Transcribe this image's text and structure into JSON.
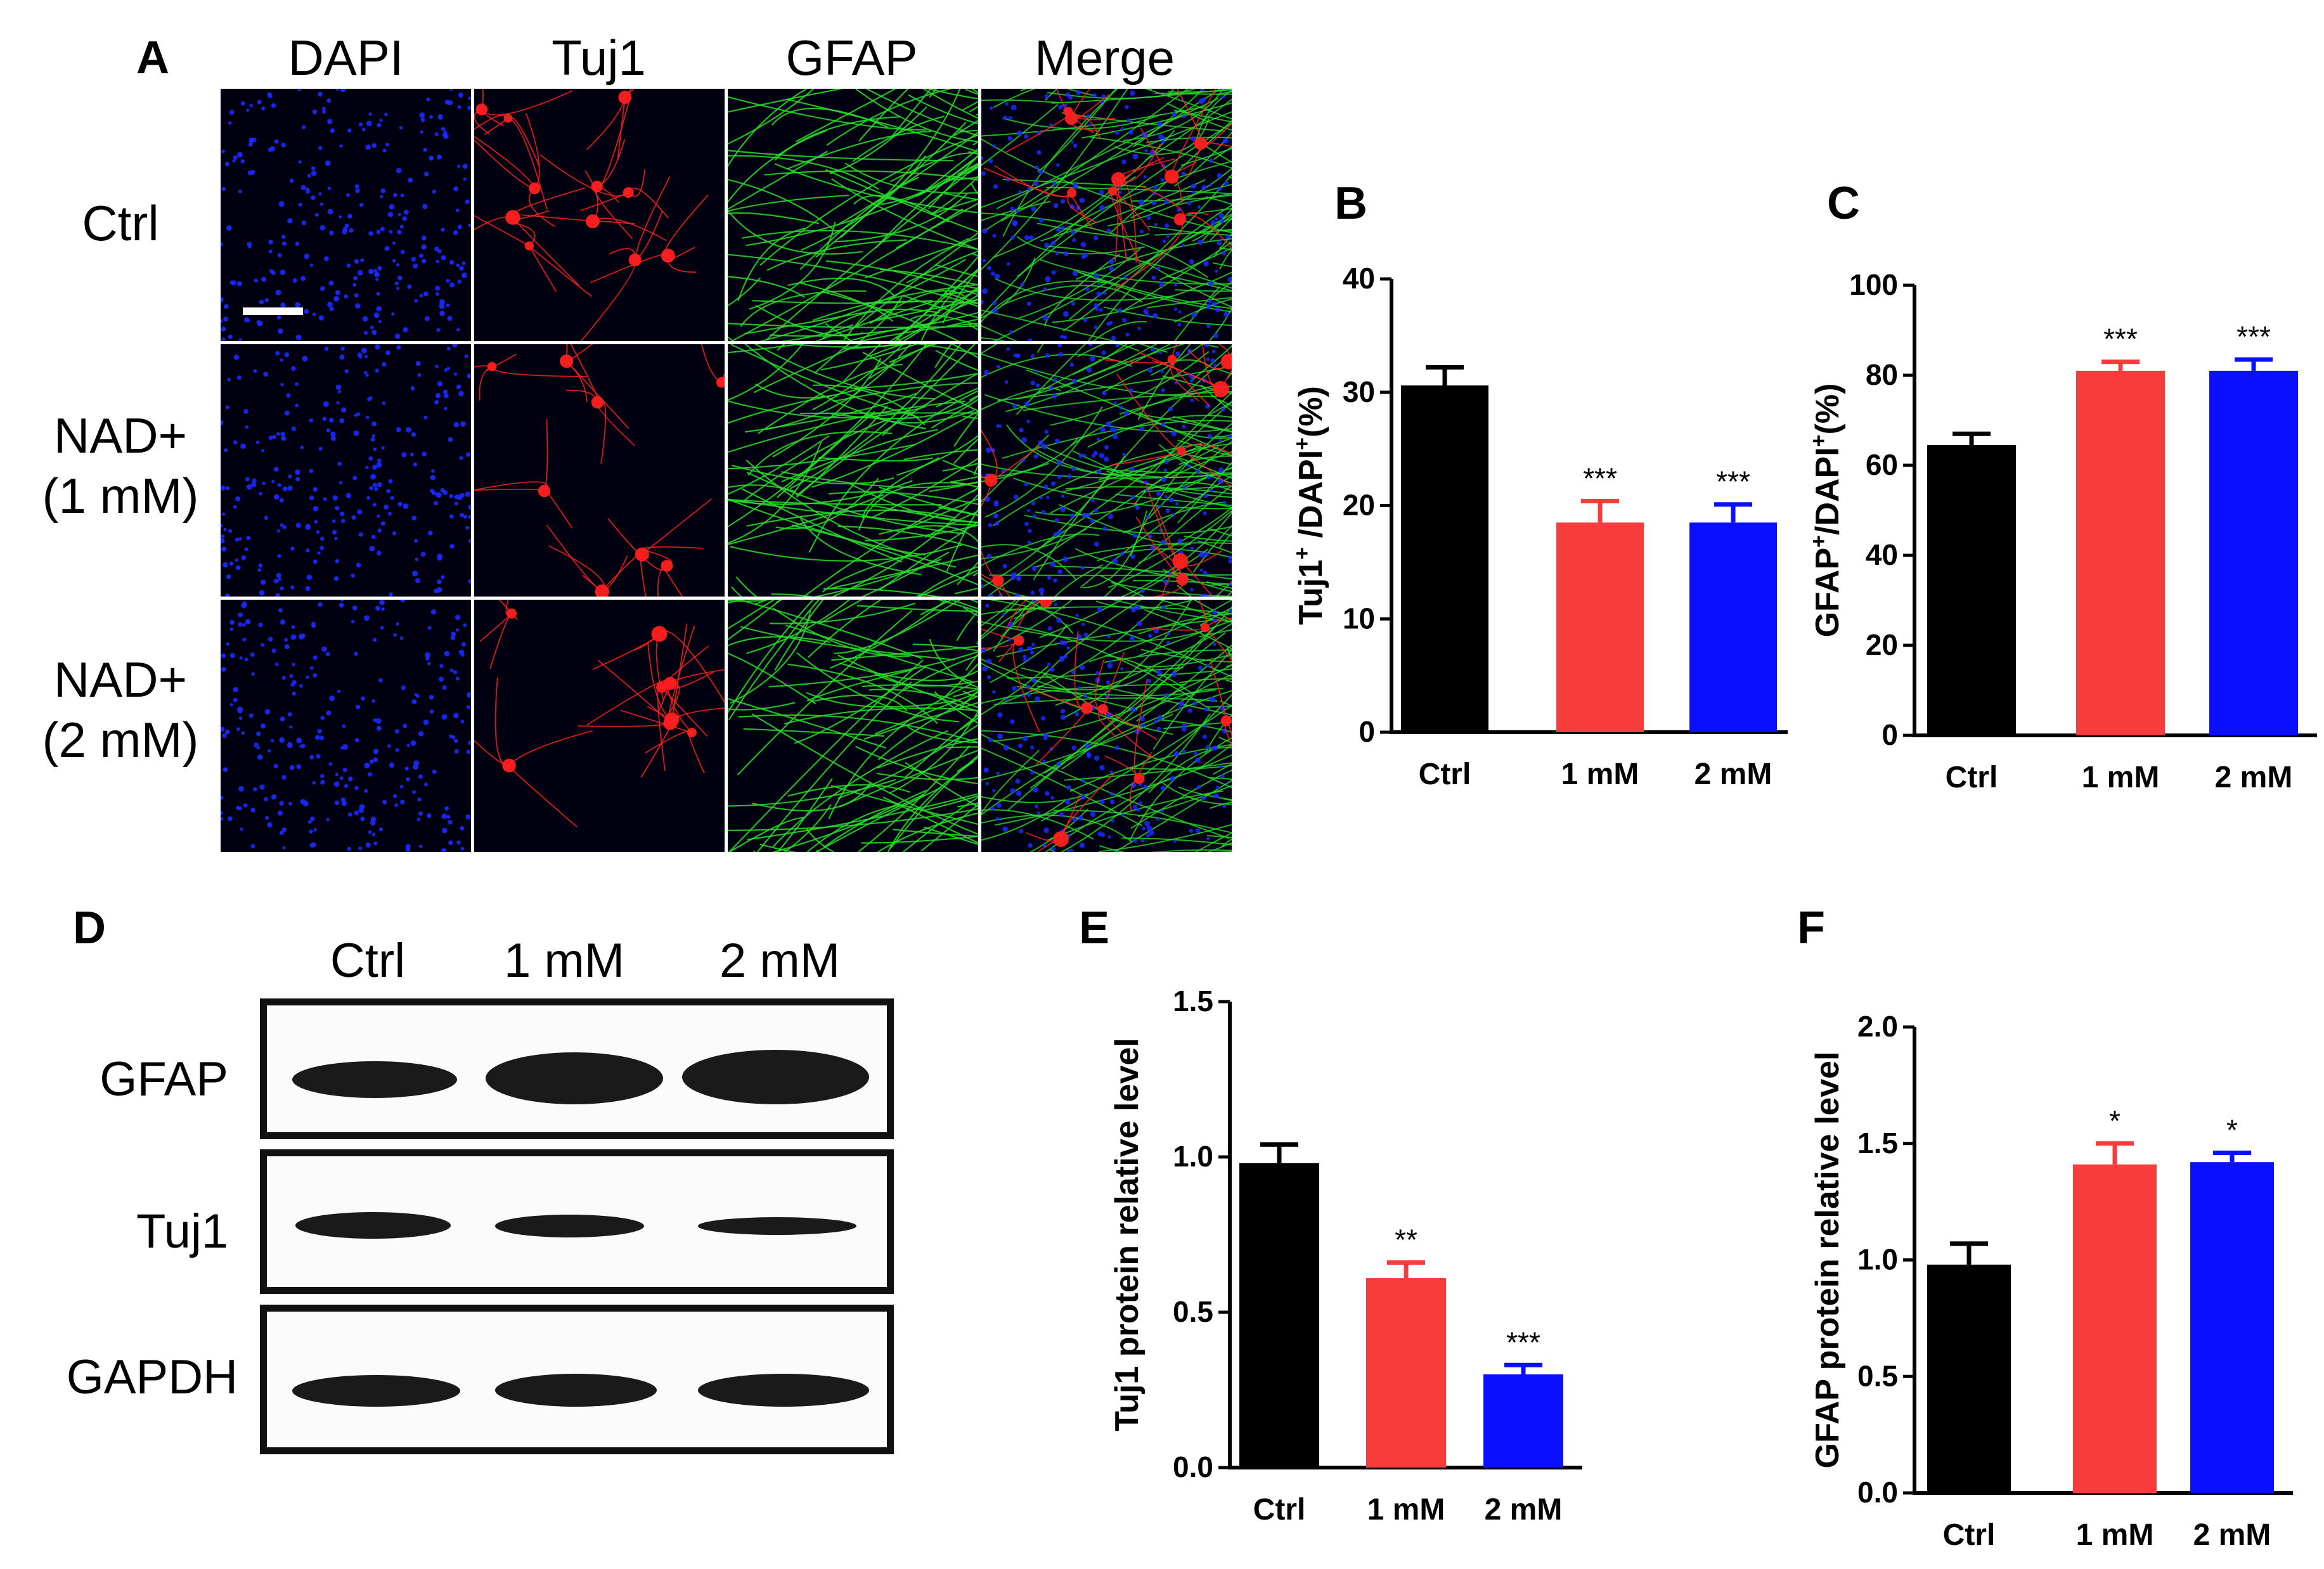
{
  "panel_letters": {
    "a": "A",
    "b": "B",
    "c": "C",
    "d": "D",
    "e": "E",
    "f": "F"
  },
  "panel_a": {
    "columns": [
      "DAPI",
      "Tuj1",
      "GFAP",
      "Merge"
    ],
    "rows": [
      {
        "line1": "Ctrl",
        "line2": ""
      },
      {
        "line1": "NAD+",
        "line2": "(1 mM)"
      },
      {
        "line1": "NAD+",
        "line2": "(2 mM)"
      }
    ],
    "channel_colors": {
      "DAPI": "#1a2aff",
      "Tuj1": "#ff2020",
      "GFAP": "#28e028"
    }
  },
  "panel_d": {
    "lanes": [
      "Ctrl",
      "1 mM",
      "2 mM"
    ],
    "proteins": [
      "GFAP",
      "Tuj1",
      "GAPDH"
    ]
  },
  "colors": {
    "ctrl": "#000000",
    "mM1": "#f73c3c",
    "mM2": "#0a10ff"
  },
  "chart_data": [
    {
      "id": "B",
      "type": "bar",
      "categories": [
        "Ctrl",
        "1 mM",
        "2 mM"
      ],
      "values": [
        30.6,
        18.5,
        18.5
      ],
      "errors": [
        1.6,
        1.9,
        1.6
      ],
      "significance": [
        "",
        "***",
        "***"
      ],
      "ylabel_parts": [
        "Tuj1",
        "+",
        " /DAPI",
        "+",
        "(%)"
      ],
      "ylim": [
        0,
        40
      ],
      "yticks": [
        "0",
        "10",
        "20",
        "30",
        "40"
      ]
    },
    {
      "id": "C",
      "type": "bar",
      "categories": [
        "Ctrl",
        "1 mM",
        "2 mM"
      ],
      "values": [
        64.5,
        81.0,
        81.0
      ],
      "errors": [
        2.5,
        2.0,
        2.5
      ],
      "significance": [
        "",
        "***",
        "***"
      ],
      "ylabel_parts": [
        "GFAP",
        "+",
        "/DAPI",
        "+",
        "(%)"
      ],
      "ylim": [
        0,
        100
      ],
      "yticks": [
        "0",
        "20",
        "40",
        "60",
        "80",
        "100"
      ]
    },
    {
      "id": "E",
      "type": "bar",
      "categories": [
        "Ctrl",
        "1 mM",
        "2 mM"
      ],
      "values": [
        0.98,
        0.61,
        0.3
      ],
      "errors": [
        0.06,
        0.05,
        0.03
      ],
      "significance": [
        "",
        "**",
        "***"
      ],
      "ylabel_parts": [
        "Tuj1 protein relative level"
      ],
      "ylim": [
        0,
        1.5
      ],
      "yticks": [
        "0.0",
        "0.5",
        "1.0",
        "1.5"
      ]
    },
    {
      "id": "F",
      "type": "bar",
      "categories": [
        "Ctrl",
        "1 mM",
        "2 mM"
      ],
      "values": [
        0.98,
        1.41,
        1.42
      ],
      "errors": [
        0.09,
        0.09,
        0.04
      ],
      "significance": [
        "",
        "*",
        "*"
      ],
      "ylabel_parts": [
        "GFAP protein relative level"
      ],
      "ylim": [
        0,
        2.0
      ],
      "yticks": [
        "0.0",
        "0.5",
        "1.0",
        "1.5",
        "2.0"
      ]
    }
  ]
}
